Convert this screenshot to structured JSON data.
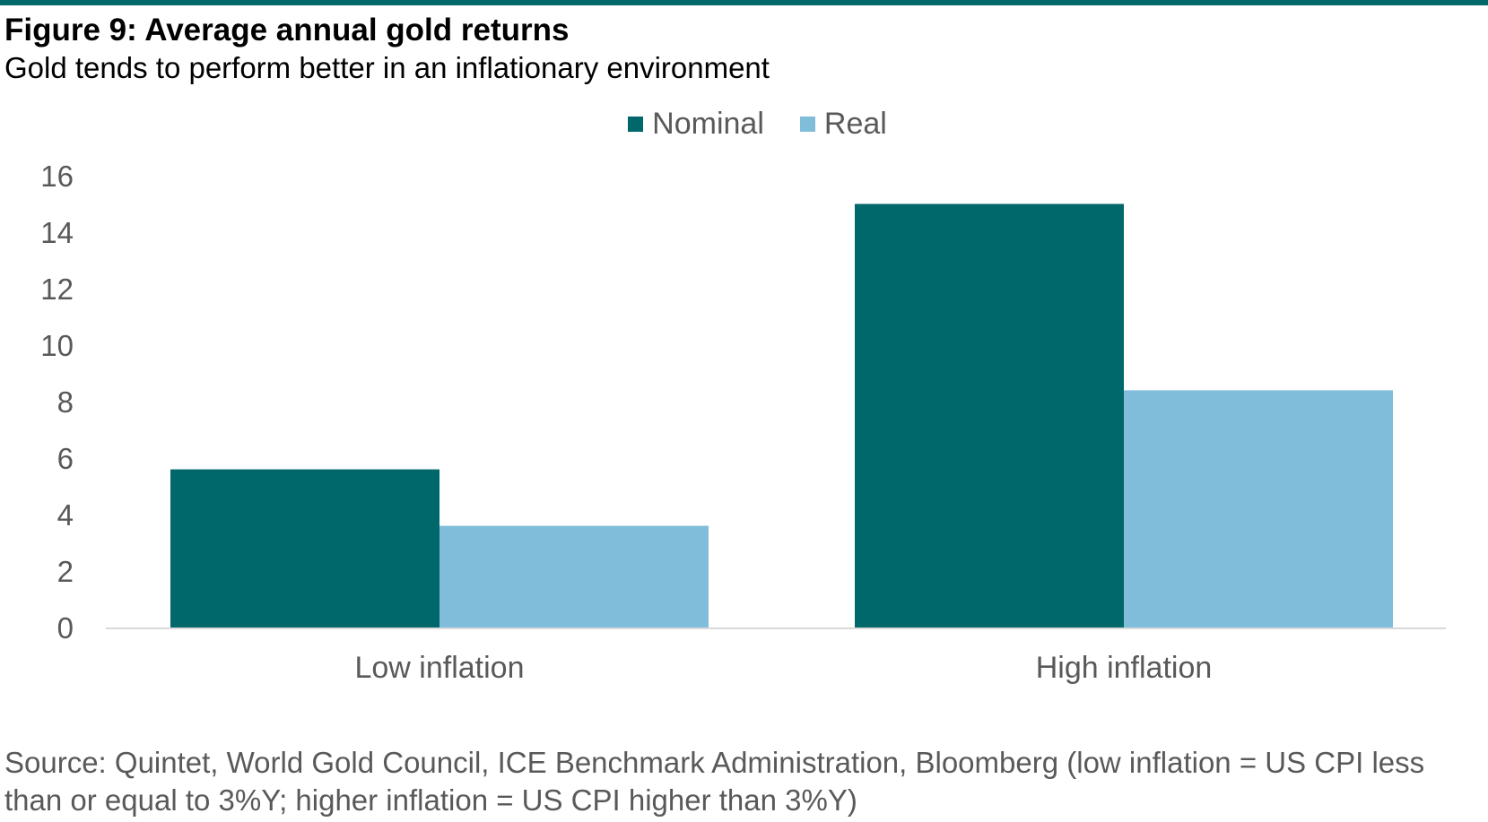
{
  "header": {
    "title": "Figure 9: Average annual gold returns",
    "subtitle": "Gold tends to perform better in an inflationary environment"
  },
  "colors": {
    "accent_rule": "#00676a",
    "nominal": "#00676a",
    "real": "#7fbdda",
    "axis": "#d9d9d9",
    "text_muted": "#595959"
  },
  "chart_data": {
    "type": "bar",
    "categories": [
      "Low inflation",
      "High inflation"
    ],
    "series": [
      {
        "name": "Nominal",
        "values": [
          5.6,
          15.0
        ]
      },
      {
        "name": "Real",
        "values": [
          3.6,
          8.4
        ]
      }
    ],
    "title": "Figure 9: Average annual gold returns",
    "subtitle": "Gold tends to perform better in an inflationary environment",
    "xlabel": "",
    "ylabel": "",
    "ylim": [
      0,
      16
    ],
    "yticks": [
      "0",
      "2",
      "4",
      "6",
      "8",
      "10",
      "12",
      "14",
      "16"
    ],
    "grid": false,
    "legend_position": "top-center"
  },
  "footer": {
    "source": "Source: Quintet, World Gold Council, ICE Benchmark Administration, Bloomberg (low inflation = US CPI less than or equal to 3%Y; higher inflation = US CPI higher than 3%Y)"
  }
}
